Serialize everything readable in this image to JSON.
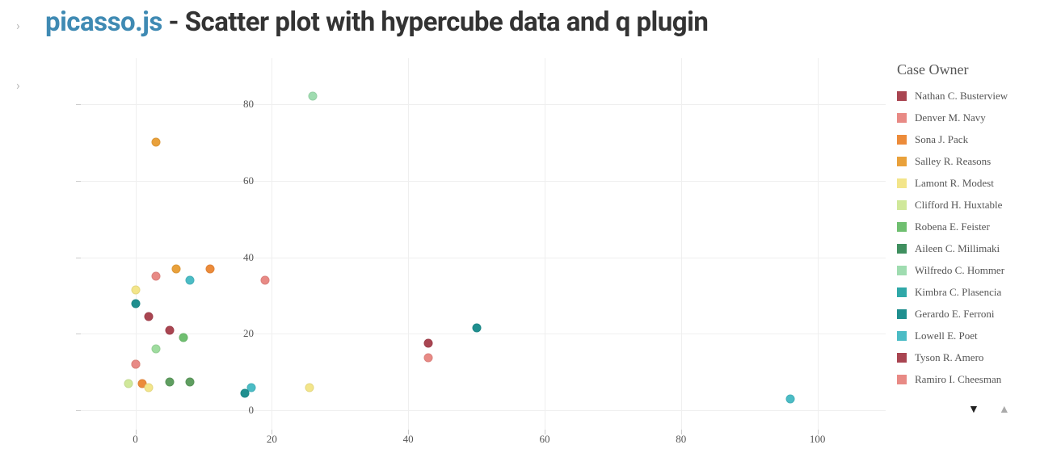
{
  "title": {
    "brand": "picasso.js",
    "rest": " - Scatter plot with hypercube data and q plugin",
    "brand_color": "#3f8ab3",
    "text_color": "#333333"
  },
  "chart": {
    "type": "scatter",
    "background_color": "#ffffff",
    "grid_color": "#efefef",
    "axis_text_color": "#555555",
    "xlim": [
      -8,
      110
    ],
    "ylim": [
      -5,
      92
    ],
    "xticks": [
      0,
      20,
      40,
      60,
      80,
      100
    ],
    "yticks": [
      0,
      20,
      40,
      60,
      80
    ],
    "marker_size": 11,
    "points": [
      {
        "x": 43,
        "y": 17.5,
        "color": "#a94551"
      },
      {
        "x": 43,
        "y": 13.8,
        "color": "#e88a85"
      },
      {
        "x": 2,
        "y": 24.5,
        "color": "#a94551"
      },
      {
        "x": 3,
        "y": 35,
        "color": "#e88a85"
      },
      {
        "x": 3,
        "y": 70,
        "color": "#e9a13b"
      },
      {
        "x": 6,
        "y": 37,
        "color": "#e9a13b"
      },
      {
        "x": 11,
        "y": 37,
        "color": "#ec8b3a"
      },
      {
        "x": 5,
        "y": 21,
        "color": "#a94551"
      },
      {
        "x": 19,
        "y": 34,
        "color": "#e88a85"
      },
      {
        "x": 8,
        "y": 34,
        "color": "#4bbcc5"
      },
      {
        "x": 0,
        "y": 31.5,
        "color": "#f3e58a"
      },
      {
        "x": 0,
        "y": 28,
        "color": "#1f8f8f"
      },
      {
        "x": 0,
        "y": 12,
        "color": "#ec8b3a"
      },
      {
        "x": 0,
        "y": 12,
        "color": "#e88a85"
      },
      {
        "x": -1,
        "y": 7,
        "color": "#d0e89a"
      },
      {
        "x": 1,
        "y": 7,
        "color": "#ec8b3a"
      },
      {
        "x": 2,
        "y": 6,
        "color": "#f3e58a"
      },
      {
        "x": 5,
        "y": 7.5,
        "color": "#5f9e60"
      },
      {
        "x": 3,
        "y": 16,
        "color": "#9fdc9f"
      },
      {
        "x": 7,
        "y": 19,
        "color": "#6fbf70"
      },
      {
        "x": 8,
        "y": 7.5,
        "color": "#5f9e60"
      },
      {
        "x": 26,
        "y": 82,
        "color": "#9fdcb0"
      },
      {
        "x": 17,
        "y": 6,
        "color": "#4bbcc5"
      },
      {
        "x": 16,
        "y": 4.5,
        "color": "#1f8f8f"
      },
      {
        "x": 25.5,
        "y": 6,
        "color": "#f3e58a"
      },
      {
        "x": 50,
        "y": 21.5,
        "color": "#1f8f8f"
      },
      {
        "x": 96,
        "y": 3,
        "color": "#4bbcc5"
      }
    ]
  },
  "legend": {
    "title": "Case Owner",
    "items": [
      {
        "label": "Nathan C. Busterview",
        "color": "#a94551"
      },
      {
        "label": "Denver M. Navy",
        "color": "#e88a85"
      },
      {
        "label": "Sona J. Pack",
        "color": "#ec8b3a"
      },
      {
        "label": "Salley R. Reasons",
        "color": "#e9a13b"
      },
      {
        "label": "Lamont R. Modest",
        "color": "#f3e58a"
      },
      {
        "label": "Clifford H. Huxtable",
        "color": "#d0e89a"
      },
      {
        "label": "Robena E. Feister",
        "color": "#6fbf70"
      },
      {
        "label": "Aileen C. Millimaki",
        "color": "#3f8f5f"
      },
      {
        "label": "Wilfredo C. Hommer",
        "color": "#9fdcb0"
      },
      {
        "label": "Kimbra C. Plasencia",
        "color": "#2fa8a8"
      },
      {
        "label": "Gerardo E. Ferroni",
        "color": "#1f8f8f"
      },
      {
        "label": "Lowell E. Poet",
        "color": "#4bbcc5"
      },
      {
        "label": "Tyson R. Amero",
        "color": "#a94551"
      },
      {
        "label": "Ramiro I. Cheesman",
        "color": "#e88a85"
      }
    ],
    "nav": {
      "down_color": "#222222",
      "up_color": "#aaaaaa"
    }
  }
}
